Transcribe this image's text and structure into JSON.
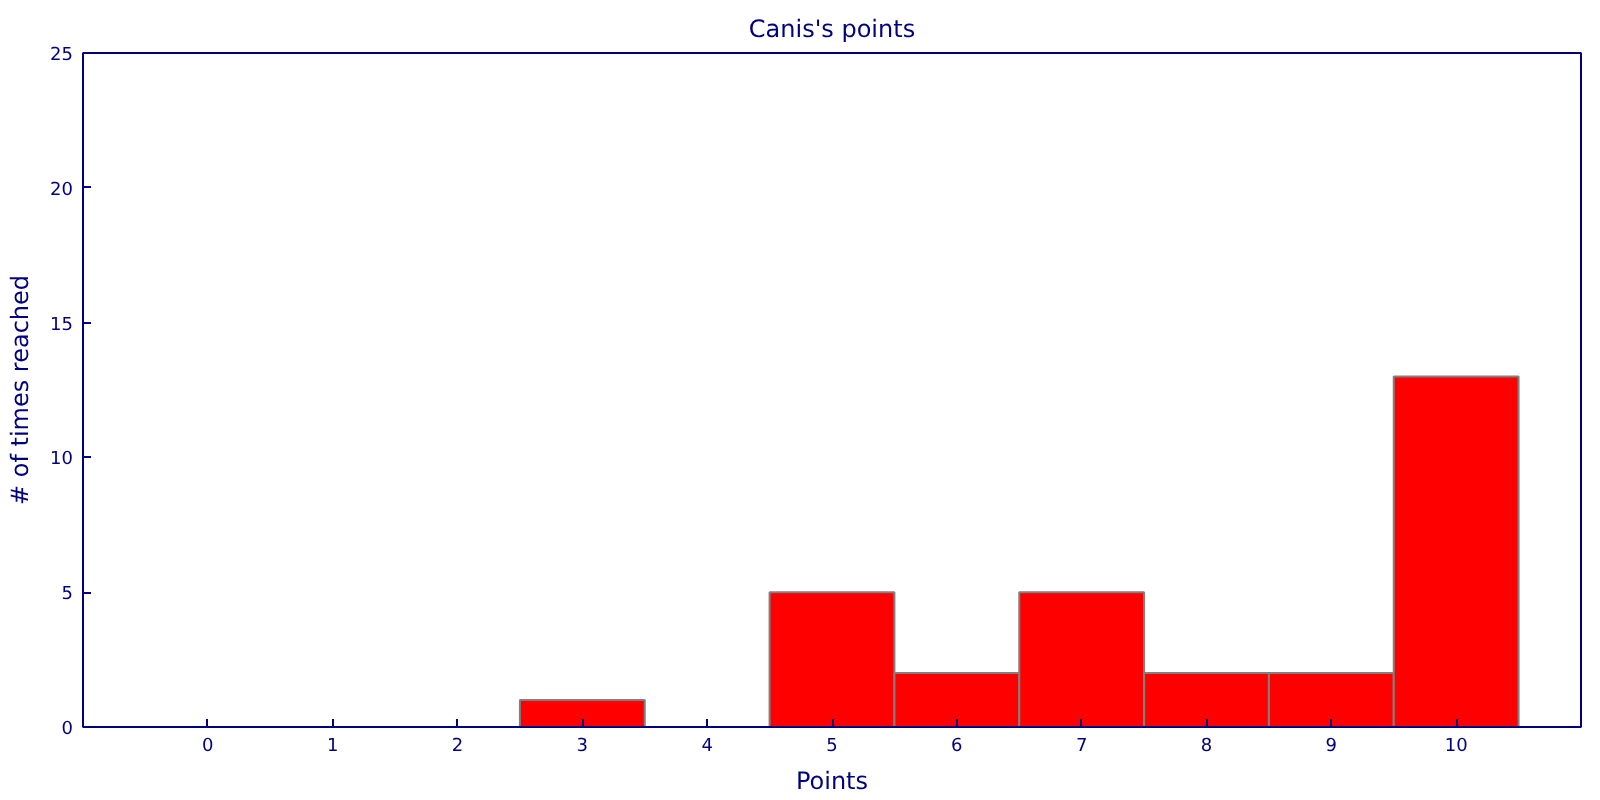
{
  "chart_data": {
    "type": "bar",
    "title": "Canis's points",
    "xlabel": "Points",
    "ylabel": "# of times reached",
    "categories": [
      "0",
      "1",
      "2",
      "3",
      "4",
      "5",
      "6",
      "7",
      "8",
      "9",
      "10"
    ],
    "values": [
      0,
      0,
      0,
      1,
      0,
      5,
      2,
      5,
      2,
      2,
      13
    ],
    "color": "#ff0000",
    "ylim": [
      0,
      25
    ],
    "yticks": [
      0,
      5,
      10,
      15,
      20,
      25
    ],
    "grid": false
  }
}
